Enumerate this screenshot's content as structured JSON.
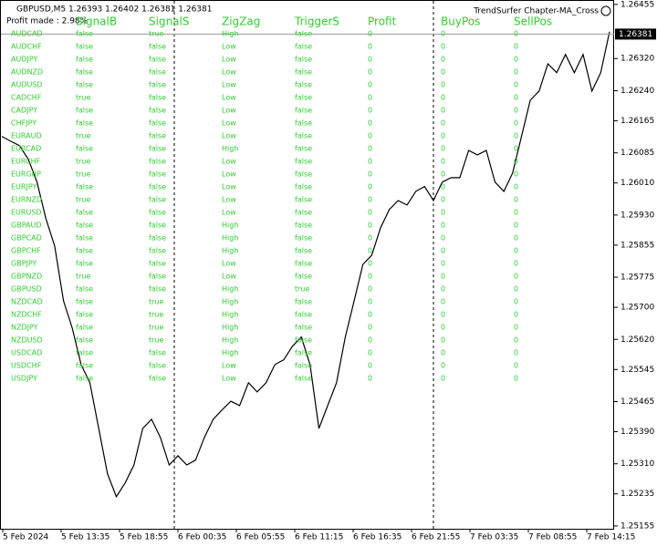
{
  "header": {
    "symbol_line": "GBPUSD,M5  1.26393 1.26402 1.26381 1.26381",
    "profit": "Profit made : 2.98%",
    "indicator": "TrendSurfer Chapter-MA_Cross"
  },
  "chart_data": {
    "type": "line",
    "color": "#000000",
    "values": [
      1.26126,
      1.26114,
      1.26103,
      1.26069,
      1.26012,
      1.25921,
      1.25853,
      1.25716,
      1.25648,
      1.25557,
      1.25512,
      1.25398,
      1.25285,
      1.25228,
      1.25262,
      1.25307,
      1.25398,
      1.25421,
      1.25376,
      1.25307,
      1.2533,
      1.25307,
      1.25319,
      1.25376,
      1.25421,
      1.25444,
      1.25466,
      1.25455,
      1.25512,
      1.25489,
      1.25512,
      1.25557,
      1.25569,
      1.25603,
      1.25626,
      1.25557,
      1.25398,
      1.25455,
      1.25512,
      1.25626,
      1.25716,
      1.25807,
      1.2583,
      1.25898,
      1.25944,
      1.25966,
      1.25955,
      1.25989,
      1.26001,
      1.25966,
      1.26012,
      1.26023,
      1.26023,
      1.26091,
      1.2608,
      1.26091,
      1.26012,
      1.25989,
      1.26035,
      1.26126,
      1.26216,
      1.26239,
      1.26307,
      1.26285,
      1.2633,
      1.26285,
      1.2633,
      1.26239,
      1.26285,
      1.26387
    ],
    "ylim": [
      1.25148,
      1.26466
    ],
    "yticks": [
      1.26455,
      {
        "value": 1.2632,
        "label": "1.26320"
      },
      {
        "value": 1.2624,
        "label": "1.26240"
      },
      1.26165,
      1.26085,
      {
        "value": 1.2601,
        "label": "1.26010"
      },
      {
        "value": 1.2593,
        "label": "1.25930"
      },
      1.25855,
      1.25775,
      {
        "value": 1.257,
        "label": "1.25700"
      },
      {
        "value": 1.2562,
        "label": "1.25620"
      },
      1.25545,
      1.25465,
      {
        "value": 1.2539,
        "label": "1.25390"
      },
      {
        "value": 1.2531,
        "label": "1.25310"
      },
      1.25235,
      1.25155
    ],
    "current_price": 1.26381,
    "x_labels": [
      "5 Feb 2024",
      "5 Feb 13:35",
      "5 Feb 18:55",
      "6 Feb 00:35",
      "6 Feb 05:55",
      "6 Feb 11:15",
      "6 Feb 16:35",
      "6 Feb 21:55",
      "7 Feb 03:35",
      "7 Feb 08:55",
      "7 Feb 14:15"
    ]
  },
  "table": {
    "columns": [
      "SignalB",
      "SignalS",
      "ZigZag",
      "TriggerS",
      "Profit",
      "BuyPos",
      "SellPos"
    ],
    "rows": [
      [
        "AUDCAD",
        "false",
        "true",
        "High",
        "false",
        "0",
        "0",
        "0"
      ],
      [
        "AUDCHF",
        "false",
        "false",
        "Low",
        "false",
        "0",
        "0",
        "0"
      ],
      [
        "AUDJPY",
        "false",
        "false",
        "Low",
        "false",
        "0",
        "0",
        "0"
      ],
      [
        "AUDNZD",
        "false",
        "false",
        "Low",
        "false",
        "0",
        "0",
        "0"
      ],
      [
        "AUDUSD",
        "false",
        "false",
        "Low",
        "false",
        "0",
        "0",
        "0"
      ],
      [
        "CADCHF",
        "true",
        "false",
        "Low",
        "false",
        "0",
        "0",
        "0"
      ],
      [
        "CADJPY",
        "false",
        "false",
        "Low",
        "false",
        "0",
        "0",
        "0"
      ],
      [
        "CHFJPY",
        "false",
        "false",
        "Low",
        "false",
        "0",
        "0",
        "0"
      ],
      [
        "EURAUD",
        "true",
        "false",
        "Low",
        "false",
        "0",
        "0",
        "0"
      ],
      [
        "EURCAD",
        "false",
        "false",
        "High",
        "false",
        "0",
        "0",
        "0"
      ],
      [
        "EURCHF",
        "true",
        "false",
        "Low",
        "false",
        "0",
        "0",
        "0"
      ],
      [
        "EURGBP",
        "true",
        "false",
        "Low",
        "false",
        "0",
        "0",
        "0"
      ],
      [
        "EURJPY",
        "false",
        "false",
        "Low",
        "false",
        "0",
        "0",
        "0"
      ],
      [
        "EURNZD",
        "true",
        "false",
        "Low",
        "false",
        "0",
        "0",
        "0"
      ],
      [
        "EURUSD",
        "false",
        "false",
        "Low",
        "false",
        "0",
        "0",
        "0"
      ],
      [
        "GBPAUD",
        "false",
        "false",
        "High",
        "false",
        "0",
        "0",
        "0"
      ],
      [
        "GBPCAD",
        "false",
        "false",
        "High",
        "false",
        "0",
        "0",
        "0"
      ],
      [
        "GBPCHF",
        "false",
        "false",
        "High",
        "false",
        "0",
        "0",
        "0"
      ],
      [
        "GBPJPY",
        "false",
        "false",
        "Low",
        "false",
        "0",
        "0",
        "0"
      ],
      [
        "GBPNZD",
        "true",
        "false",
        "Low",
        "false",
        "0",
        "0",
        "0"
      ],
      [
        "GBPUSD",
        "false",
        "false",
        "High",
        "true",
        "0",
        "0",
        "0"
      ],
      [
        "NZDCAD",
        "false",
        "true",
        "High",
        "false",
        "0",
        "0",
        "0"
      ],
      [
        "NZDCHF",
        "false",
        "true",
        "High",
        "false",
        "0",
        "0",
        "0"
      ],
      [
        "NZDJPY",
        "false",
        "true",
        "High",
        "false",
        "0",
        "0",
        "0"
      ],
      [
        "NZDUSD",
        "false",
        "true",
        "High",
        "false",
        "0",
        "0",
        "0"
      ],
      [
        "USDCAD",
        "false",
        "false",
        "High",
        "false",
        "0",
        "0",
        "0"
      ],
      [
        "USDCHF",
        "false",
        "false",
        "Low",
        "false",
        "0",
        "0",
        "0"
      ],
      [
        "USDJPY",
        "false",
        "false",
        "Low",
        "false",
        "0",
        "0",
        "0"
      ]
    ]
  }
}
